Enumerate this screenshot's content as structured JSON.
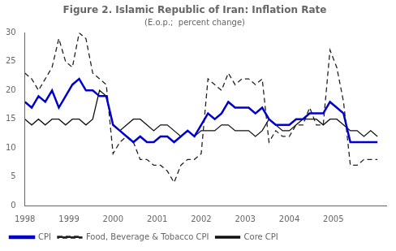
{
  "chart_data": {
    "type": "line",
    "title": "Figure 2. Islamic Republic of Iran: Inflation Rate",
    "subtitle": "(E.o.p.;  percent change)",
    "x": [
      1998,
      1998.153846,
      1998.307692,
      1998.461538,
      1998.615385,
      1998.769231,
      1998.923077,
      1999.076923,
      1999.230769,
      1999.384615,
      1999.538462,
      1999.692308,
      1999.846154,
      2000,
      2000.153846,
      2000.307692,
      2000.461538,
      2000.615385,
      2000.769231,
      2000.923077,
      2001.076923,
      2001.230769,
      2001.384615,
      2001.538462,
      2001.692308,
      2001.846154,
      2002,
      2002.153846,
      2002.307692,
      2002.461538,
      2002.615385,
      2002.769231,
      2002.923077,
      2003.076923,
      2003.230769,
      2003.384615,
      2003.538462,
      2003.692308,
      2003.846154,
      2004,
      2004.153846,
      2004.307692,
      2004.461538,
      2004.615385,
      2004.769231,
      2004.923077,
      2005.076923,
      2005.230769,
      2005.384615,
      2005.538462,
      2005.692308,
      2005.846154,
      2006
    ],
    "series": [
      {
        "name": "CPI",
        "color": "#0000cc",
        "line_style": "solid",
        "values": [
          18,
          17,
          19,
          18,
          20,
          17,
          19,
          21,
          22,
          20,
          20,
          19,
          19,
          14,
          13,
          12,
          11,
          12,
          11,
          11,
          12,
          12,
          11,
          12,
          13,
          12,
          14,
          16,
          15,
          16,
          18,
          17,
          17,
          17,
          16,
          17,
          15,
          14,
          14,
          14,
          15,
          15,
          16,
          16,
          16,
          18,
          17,
          16,
          11,
          11,
          11,
          11,
          11
        ]
      },
      {
        "name": "Food, Beverage & Tobacco CPI",
        "color": "#222222",
        "line_style": "dashed",
        "values": [
          23,
          22,
          20,
          22,
          24,
          29,
          25,
          24,
          30,
          29,
          23,
          22,
          21,
          9,
          11,
          12,
          11,
          8,
          8,
          7,
          7,
          6,
          4,
          7,
          8,
          8,
          9,
          22,
          21,
          20,
          23,
          21,
          22,
          22,
          21,
          22,
          11,
          13,
          12,
          12,
          14,
          14,
          17,
          14,
          14,
          27,
          24,
          18,
          7,
          7,
          8,
          8,
          8
        ]
      },
      {
        "name": "Core CPI",
        "color": "#111111",
        "line_style": "solid",
        "values": [
          15,
          14,
          15,
          14,
          15,
          15,
          14,
          15,
          15,
          14,
          15,
          20,
          19,
          14,
          13,
          14,
          15,
          15,
          14,
          13,
          14,
          14,
          13,
          12,
          13,
          12,
          13,
          13,
          13,
          14,
          14,
          13,
          13,
          13,
          12,
          13,
          15,
          14,
          13,
          13,
          14,
          15,
          15,
          15,
          14,
          15,
          15,
          14,
          13,
          13,
          12,
          13,
          12
        ]
      }
    ],
    "xlim": [
      1998,
      2006.2
    ],
    "xticks": [
      1998,
      1999,
      2000,
      2001,
      2002,
      2003,
      2004,
      2005
    ],
    "ylim": [
      0,
      30
    ],
    "yticks": [
      0,
      5,
      10,
      15,
      20,
      25,
      30
    ],
    "grid": false,
    "legend": "bottom"
  }
}
